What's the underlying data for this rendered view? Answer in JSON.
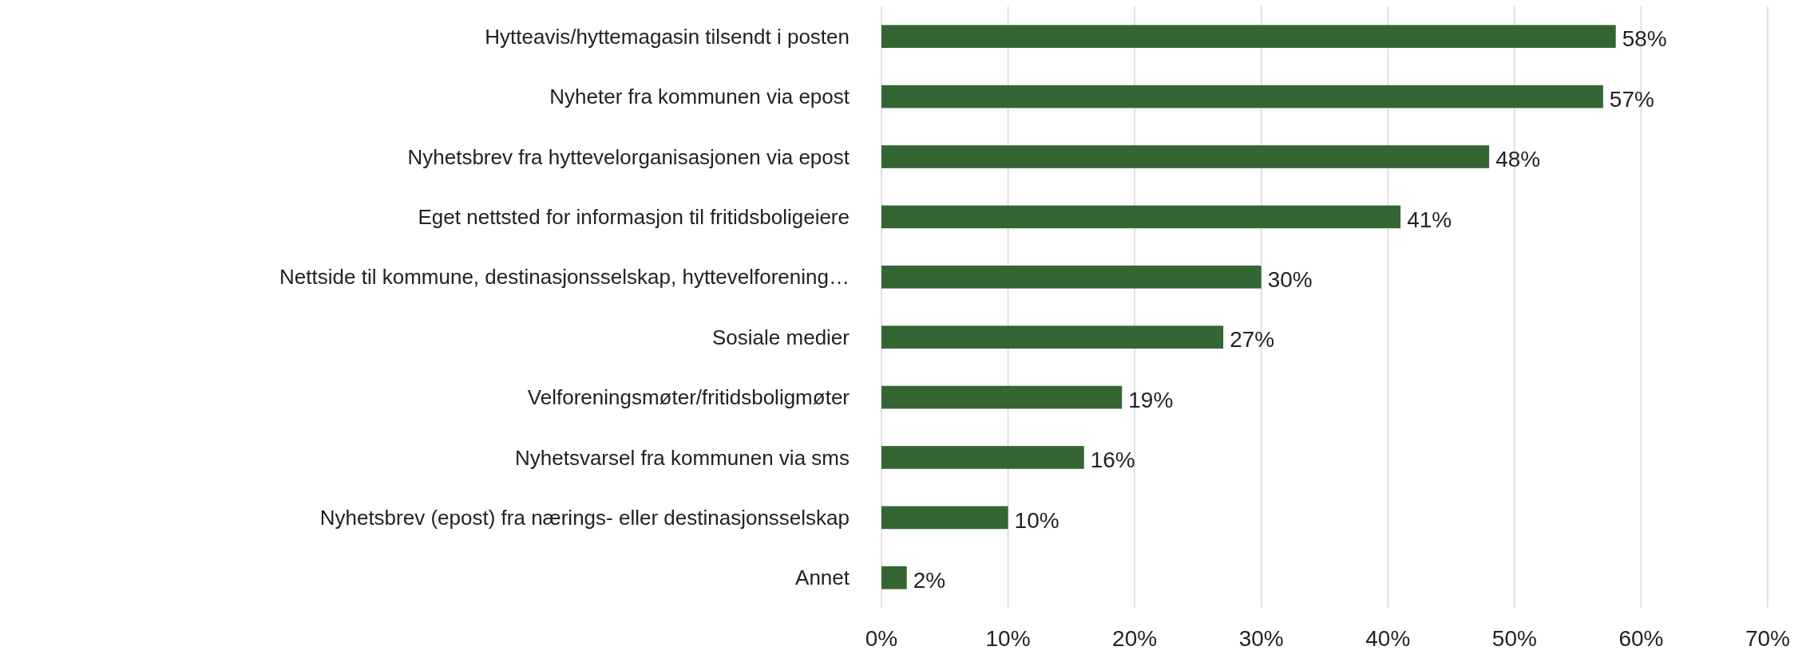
{
  "chart_data": {
    "type": "bar",
    "orientation": "horizontal",
    "categories": [
      "Hytteavis/hyttemagasin tilsendt i posten",
      "Nyheter fra kommunen via epost",
      "Nyhetsbrev fra hyttevelorganisasjonen via epost",
      "Eget nettsted for informasjon til fritidsboligeiere",
      "Nettside til kommune, destinasjonsselskap, hyttevelforening…",
      "Sosiale medier",
      "Velforeningsmøter/fritidsboligmøter",
      "Nyhetsvarsel fra kommunen via sms",
      "Nyhetsbrev (epost) fra nærings- eller destinasjonsselskap",
      "Annet"
    ],
    "values": [
      58,
      57,
      48,
      41,
      30,
      27,
      19,
      16,
      10,
      2
    ],
    "value_labels": [
      "58%",
      "57%",
      "48%",
      "41%",
      "30%",
      "27%",
      "19%",
      "16%",
      "10%",
      "2%"
    ],
    "color": "#336633",
    "xlim": [
      0,
      70
    ],
    "xticks": [
      {
        "value": 0,
        "label": "0%"
      },
      {
        "value": 10,
        "label": "10%"
      },
      {
        "value": 20,
        "label": "20%"
      },
      {
        "value": 30,
        "label": "30%"
      },
      {
        "value": 40,
        "label": "40%"
      },
      {
        "value": 50,
        "label": "50%"
      },
      {
        "value": 60,
        "label": "60%"
      },
      {
        "value": 70,
        "label": "70%"
      }
    ],
    "grid": "x"
  }
}
